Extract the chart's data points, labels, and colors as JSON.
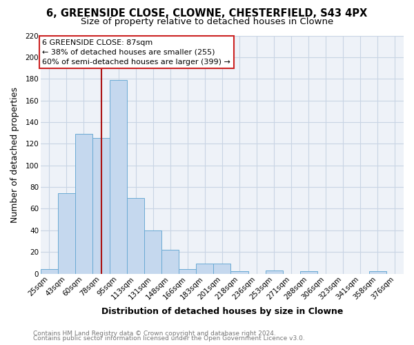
{
  "title": "6, GREENSIDE CLOSE, CLOWNE, CHESTERFIELD, S43 4PX",
  "subtitle": "Size of property relative to detached houses in Clowne",
  "xlabel": "Distribution of detached houses by size in Clowne",
  "ylabel": "Number of detached properties",
  "footer_line1": "Contains HM Land Registry data © Crown copyright and database right 2024.",
  "footer_line2": "Contains public sector information licensed under the Open Government Licence v3.0.",
  "bin_labels": [
    "25sqm",
    "43sqm",
    "60sqm",
    "78sqm",
    "95sqm",
    "113sqm",
    "131sqm",
    "148sqm",
    "166sqm",
    "183sqm",
    "201sqm",
    "218sqm",
    "236sqm",
    "253sqm",
    "271sqm",
    "288sqm",
    "306sqm",
    "323sqm",
    "341sqm",
    "358sqm",
    "376sqm"
  ],
  "bar_heights": [
    4,
    74,
    129,
    125,
    179,
    70,
    40,
    22,
    4,
    9,
    9,
    2,
    0,
    3,
    0,
    2,
    0,
    0,
    0,
    2,
    0
  ],
  "bar_color": "#c5d8ee",
  "bar_edge_color": "#6aaad4",
  "bar_width": 1.0,
  "ylim": [
    0,
    220
  ],
  "yticks": [
    0,
    20,
    40,
    60,
    80,
    100,
    120,
    140,
    160,
    180,
    200,
    220
  ],
  "bin_starts": [
    25,
    43,
    60,
    78,
    95,
    113,
    131,
    148,
    166,
    183,
    201,
    218,
    236,
    253,
    271,
    288,
    306,
    323,
    341,
    358,
    376,
    394
  ],
  "property_size": 87,
  "vline_color": "#aa1111",
  "annotation_title": "6 GREENSIDE CLOSE: 87sqm",
  "annotation_line2": "← 38% of detached houses are smaller (255)",
  "annotation_line3": "60% of semi-detached houses are larger (399) →",
  "grid_color": "#c8d4e4",
  "background_color": "#ffffff",
  "axes_background": "#eef2f8",
  "title_fontsize": 10.5,
  "subtitle_fontsize": 9.5,
  "axis_label_fontsize": 9,
  "tick_fontsize": 7.5,
  "annotation_fontsize": 8,
  "footer_fontsize": 6.5
}
